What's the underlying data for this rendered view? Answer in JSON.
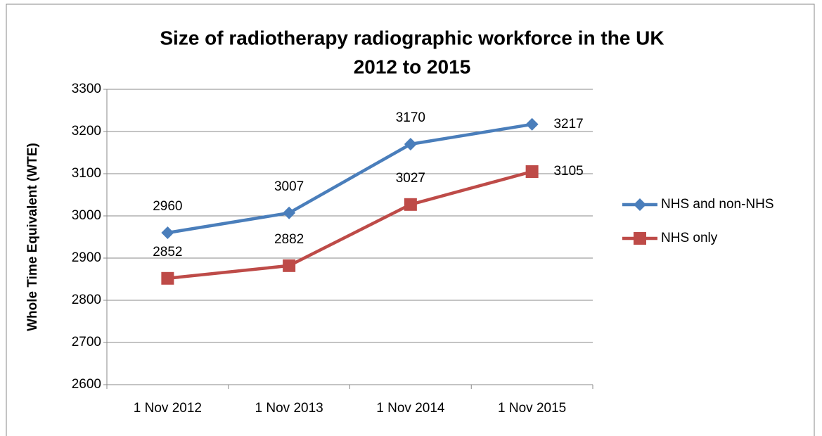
{
  "chart_data": {
    "type": "line",
    "title": [
      "Size of radiotherapy radiographic workforce in the UK",
      "2012 to 2015"
    ],
    "y_label": "Whole Time Equivalent (WTE)",
    "categories": [
      "1 Nov 2012",
      "1 Nov 2013",
      "1 Nov 2014",
      "1 Nov 2015"
    ],
    "series": [
      {
        "name": "NHS and non-NHS",
        "color": "#4a7ebb",
        "marker": "diamond",
        "values": [
          2960,
          3007,
          3170,
          3217
        ]
      },
      {
        "name": "NHS only",
        "color": "#be4b48",
        "marker": "square",
        "values": [
          2852,
          2882,
          3027,
          3105
        ]
      }
    ],
    "ylim": [
      2600,
      3300
    ],
    "yticks": [
      2600,
      2700,
      2800,
      2900,
      3000,
      3100,
      3200,
      3300
    ],
    "grid": true,
    "legend": "right"
  }
}
